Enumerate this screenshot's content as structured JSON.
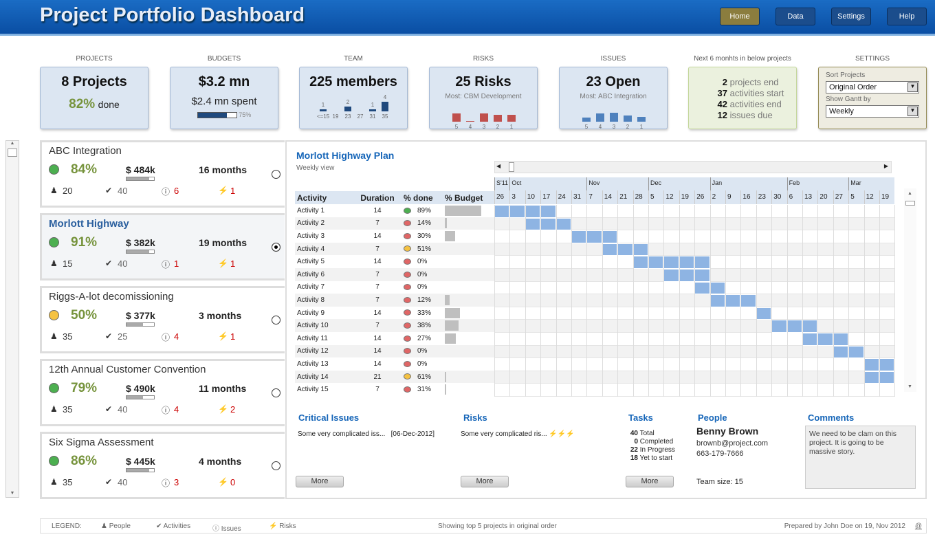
{
  "header": {
    "title": "Project Portfolio Dashboard",
    "nav": [
      "Home",
      "Data",
      "Settings",
      "Help"
    ]
  },
  "kpis": {
    "projects": {
      "label": "PROJECTS",
      "value": "8 Projects",
      "pct": "82%",
      "pct_suffix": "done"
    },
    "budgets": {
      "label": "BUDGETS",
      "value": "$3.2 mn",
      "spent": "$2.4 mn spent",
      "progress": 0.75,
      "progress_label": "75%"
    },
    "team": {
      "label": "TEAM",
      "value": "225 members",
      "bins": [
        "<=15",
        "19",
        "23",
        "27",
        "31",
        "35"
      ],
      "counts": [
        1,
        0,
        2,
        0,
        1,
        4
      ]
    },
    "risks": {
      "label": "RISKS",
      "value": "25 Risks",
      "most": "Most: CBM Development",
      "bins": [
        "5",
        "4",
        "3",
        "2",
        "1"
      ],
      "heights": [
        4,
        0.3,
        4,
        3.5,
        3.5
      ]
    },
    "issues": {
      "label": "ISSUES",
      "value": "23 Open",
      "most": "Most: ABC Integration",
      "bins": [
        "5",
        "4",
        "3",
        "2",
        "1"
      ],
      "heights": [
        2,
        4,
        4.5,
        3,
        2.5
      ]
    },
    "next": {
      "label": "Next 6 monhts in below projects",
      "items": [
        {
          "n": "2",
          "t": "projects end"
        },
        {
          "n": "37",
          "t": "activities start"
        },
        {
          "n": "42",
          "t": "activities end"
        },
        {
          "n": "12",
          "t": "issues due"
        }
      ]
    },
    "settings": {
      "label": "SETTINGS",
      "sort_label": "Sort Projects",
      "sort_value": "Original Order",
      "gantt_label": "Show Gantt by",
      "gantt_value": "Weekly"
    }
  },
  "projects": [
    {
      "name": "ABC Integration",
      "status": "green",
      "pct": "84%",
      "budget": "$ 484k",
      "budget_used": 0.83,
      "duration": "16 months",
      "people": "20",
      "activities": "40",
      "issues": "6",
      "risks": "1",
      "selected": false
    },
    {
      "name": "Morlott Highway",
      "status": "green",
      "pct": "91%",
      "budget": "$ 382k",
      "budget_used": 0.83,
      "duration": "19 months",
      "people": "15",
      "activities": "40",
      "issues": "1",
      "risks": "1",
      "selected": true
    },
    {
      "name": "Riggs-A-lot decomissioning",
      "status": "yellow",
      "pct": "50%",
      "budget": "$ 377k",
      "budget_used": 0.6,
      "duration": "3 months",
      "people": "35",
      "activities": "25",
      "issues": "4",
      "risks": "1",
      "selected": false
    },
    {
      "name": "12th Annual Customer Convention",
      "status": "green",
      "pct": "79%",
      "budget": "$ 490k",
      "budget_used": 0.6,
      "duration": "11 months",
      "people": "35",
      "activities": "40",
      "issues": "4",
      "risks": "2",
      "selected": false
    },
    {
      "name": "Six Sigma Assessment",
      "status": "green",
      "pct": "86%",
      "budget": "$ 445k",
      "budget_used": 0.83,
      "duration": "4 months",
      "people": "35",
      "activities": "40",
      "issues": "3",
      "risks": "0",
      "selected": false
    }
  ],
  "plan": {
    "title": "Morlott Highway Plan",
    "subtitle": "Weekly view",
    "columns": [
      "Activity",
      "Duration",
      "% done",
      "% Budget"
    ],
    "months": [
      {
        "m": "S'11",
        "span": 1
      },
      {
        "m": "Oct",
        "span": 5
      },
      {
        "m": "Nov",
        "span": 4
      },
      {
        "m": "Dec",
        "span": 4
      },
      {
        "m": "Jan",
        "span": 5
      },
      {
        "m": "Feb",
        "span": 4
      },
      {
        "m": "Mar",
        "span": 3
      }
    ],
    "weeks": [
      "26",
      "3",
      "10",
      "17",
      "24",
      "31",
      "7",
      "14",
      "21",
      "28",
      "5",
      "12",
      "19",
      "26",
      "2",
      "9",
      "16",
      "23",
      "30",
      "6",
      "13",
      "20",
      "27",
      "5",
      "12",
      "19"
    ],
    "activities": [
      {
        "name": "Activity 1",
        "dur": "14",
        "status": "green",
        "done": "89%",
        "budget": 0.89,
        "start": 0,
        "len": 4
      },
      {
        "name": "Activity 2",
        "dur": "7",
        "status": "red",
        "done": "14%",
        "budget": 0.05,
        "start": 2,
        "len": 3
      },
      {
        "name": "Activity 3",
        "dur": "14",
        "status": "red",
        "done": "30%",
        "budget": 0.25,
        "start": 5,
        "len": 3
      },
      {
        "name": "Activity 4",
        "dur": "7",
        "status": "yellow",
        "done": "51%",
        "budget": 0,
        "start": 7,
        "len": 3
      },
      {
        "name": "Activity 5",
        "dur": "14",
        "status": "red",
        "done": "0%",
        "budget": 0,
        "start": 9,
        "len": 5
      },
      {
        "name": "Activity 6",
        "dur": "7",
        "status": "red",
        "done": "0%",
        "budget": 0,
        "start": 11,
        "len": 3
      },
      {
        "name": "Activity 7",
        "dur": "7",
        "status": "red",
        "done": "0%",
        "budget": 0,
        "start": 13,
        "len": 2
      },
      {
        "name": "Activity 8",
        "dur": "7",
        "status": "red",
        "done": "12%",
        "budget": 0.12,
        "start": 14,
        "len": 3
      },
      {
        "name": "Activity 9",
        "dur": "14",
        "status": "red",
        "done": "33%",
        "budget": 0.37,
        "start": 17,
        "len": 1
      },
      {
        "name": "Activity 10",
        "dur": "7",
        "status": "red",
        "done": "38%",
        "budget": 0.33,
        "start": 18,
        "len": 3
      },
      {
        "name": "Activity 11",
        "dur": "14",
        "status": "red",
        "done": "27%",
        "budget": 0.27,
        "start": 20,
        "len": 3
      },
      {
        "name": "Activity 12",
        "dur": "14",
        "status": "red",
        "done": "0%",
        "budget": 0,
        "start": 22,
        "len": 2
      },
      {
        "name": "Activity 13",
        "dur": "14",
        "status": "red",
        "done": "0%",
        "budget": 0,
        "start": 24,
        "len": 2
      },
      {
        "name": "Activity 14",
        "dur": "21",
        "status": "yellow",
        "done": "61%",
        "budget": 0.03,
        "start": 24,
        "len": 2
      },
      {
        "name": "Activity 15",
        "dur": "7",
        "status": "red",
        "done": "31%",
        "budget": 0.03,
        "start": 0,
        "len": 0
      }
    ]
  },
  "details": {
    "critical": {
      "title": "Critical Issues",
      "text": "Some very complicated iss...",
      "date": "[06-Dec-2012]",
      "more": "More"
    },
    "risks": {
      "title": "Risks",
      "text": "Some very complicated ris...",
      "more": "More"
    },
    "tasks": {
      "title": "Tasks",
      "items": [
        {
          "n": "40",
          "t": "Total"
        },
        {
          "n": "0",
          "t": "Completed"
        },
        {
          "n": "22",
          "t": "In Progress"
        },
        {
          "n": "18",
          "t": "Yet to start"
        }
      ],
      "more": "More"
    },
    "people": {
      "title": "People",
      "name": "Benny Brown",
      "email": "brownb@project.com",
      "phone": "663-179-7666",
      "team": "Team size: 15"
    },
    "comments": {
      "title": "Comments",
      "text": "We need to be clam on this project. It is going to be massive story."
    }
  },
  "footer": {
    "legend": "LEGEND:",
    "people": "People",
    "activities": "Activities",
    "issues": "Issues",
    "risks": "Risks",
    "showing": "Showing top 5 projects in original order",
    "prepared": "Prepared by John Doe on 19, Nov 2012",
    "at": "@"
  },
  "colors": {
    "green": "#4caf50",
    "red": "#e06666",
    "yellow": "#f5c242",
    "bar": "#8eb4e3"
  }
}
